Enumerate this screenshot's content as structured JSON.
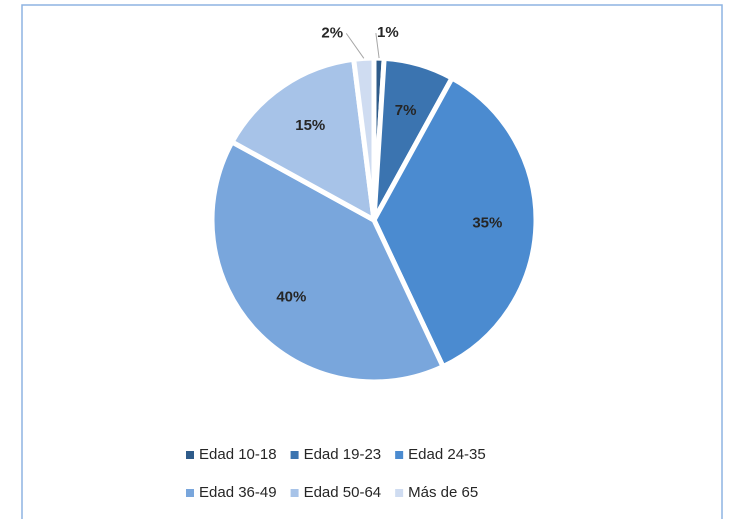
{
  "chart_data": {
    "type": "pie",
    "categories": [
      "Edad 10-18",
      "Edad 19-23",
      "Edad 24-35",
      "Edad 36-49",
      "Edad 50-64",
      "Más de 65"
    ],
    "values": [
      1,
      7,
      35,
      40,
      15,
      2
    ],
    "value_labels": [
      "1%",
      "7%",
      "35%",
      "40%",
      "15%",
      "2%"
    ],
    "colors": [
      "#2e5b8a",
      "#3b74b0",
      "#4b8bd0",
      "#79a6dc",
      "#a7c3e8",
      "#cfdcf1"
    ],
    "legend": "bottom"
  }
}
